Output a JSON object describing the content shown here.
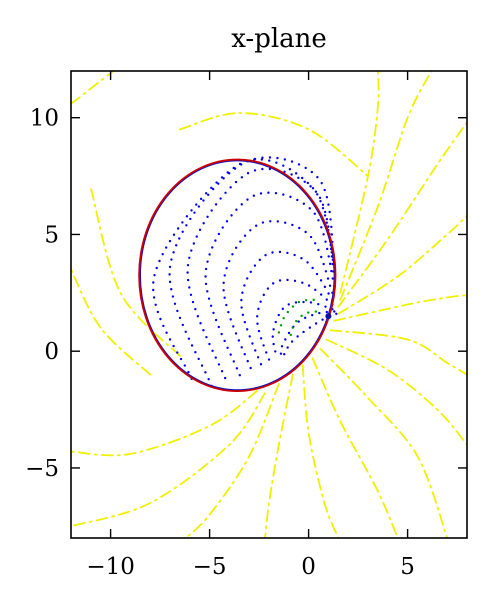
{
  "chart_data": {
    "type": "line",
    "title": "x-plane",
    "xlabel": "",
    "ylabel": "",
    "xlim": [
      -12,
      8
    ],
    "ylim": [
      -8,
      12
    ],
    "grid": false,
    "legend": "none",
    "x_ticks": [
      {
        "value": -10,
        "label": "−10"
      },
      {
        "value": -5,
        "label": "−5"
      },
      {
        "value": 0,
        "label": "0"
      },
      {
        "value": 5,
        "label": "5"
      }
    ],
    "y_ticks": [
      {
        "value": 10,
        "label": "10"
      },
      {
        "value": 5,
        "label": "5"
      },
      {
        "value": 0,
        "label": "0"
      },
      {
        "value": -5,
        "label": "−5"
      }
    ],
    "boundary_ellipse": {
      "center": [
        -3.6,
        3.25
      ],
      "semi_axis_x": 4.95,
      "semi_axis_y": 4.95,
      "color_outer": "#cc0000",
      "color_inner": "#1010c0"
    },
    "singular_point": [
      1.0,
      1.5
    ],
    "series": [
      {
        "style": "dotted",
        "color": "#0000ee",
        "description_role": "interior streamlines",
        "curves": [
          [
            [
              1.4,
              1.6
            ],
            [
              0.6,
              1.3
            ],
            [
              -0.6,
              0.6
            ],
            [
              -1.1,
              0.1
            ],
            [
              -1.3,
              -0.3
            ]
          ],
          [
            [
              1.3,
              1.7
            ],
            [
              0.4,
              1.6
            ],
            [
              -0.6,
              1.2
            ],
            [
              -1.3,
              0.3
            ],
            [
              -1.4,
              -0.2
            ]
          ],
          [
            [
              1.2,
              1.8
            ],
            [
              0.0,
              2.1
            ],
            [
              -1.2,
              1.9
            ],
            [
              -1.8,
              0.8
            ],
            [
              -1.6,
              -0.3
            ]
          ],
          [
            [
              1.2,
              2.0
            ],
            [
              -0.2,
              2.9
            ],
            [
              -1.8,
              2.9
            ],
            [
              -2.6,
              1.4
            ],
            [
              -1.9,
              -0.6
            ]
          ],
          [
            [
              1.2,
              2.2
            ],
            [
              -0.2,
              3.9
            ],
            [
              -2.2,
              4.1
            ],
            [
              -3.4,
              2.1
            ],
            [
              -2.3,
              -0.8
            ]
          ],
          [
            [
              1.2,
              2.5
            ],
            [
              0.0,
              5.0
            ],
            [
              -2.6,
              5.4
            ],
            [
              -4.3,
              2.8
            ],
            [
              -2.8,
              -1.0
            ]
          ],
          [
            [
              1.3,
              2.8
            ],
            [
              0.2,
              6.0
            ],
            [
              -2.9,
              6.6
            ],
            [
              -5.2,
              3.3
            ],
            [
              -3.4,
              -1.2
            ]
          ],
          [
            [
              1.3,
              3.1
            ],
            [
              0.4,
              6.8
            ],
            [
              -3.1,
              7.6
            ],
            [
              -6.1,
              3.6
            ],
            [
              -4.1,
              -1.4
            ]
          ],
          [
            [
              1.3,
              3.4
            ],
            [
              0.5,
              7.4
            ],
            [
              -3.4,
              8.0
            ],
            [
              -7.0,
              3.6
            ],
            [
              -4.9,
              -1.5
            ]
          ],
          [
            [
              1.3,
              3.6
            ],
            [
              0.2,
              7.0
            ],
            [
              -3.5,
              8.0
            ],
            [
              -7.8,
              3.2
            ],
            [
              -5.9,
              -1.2
            ]
          ]
        ]
      },
      {
        "style": "dotted",
        "color": "#00a000",
        "description_role": "secondary dotted curves near singular point",
        "curves": [
          [
            [
              -1.5,
              0.8
            ],
            [
              -1.2,
              1.5
            ],
            [
              -0.5,
              2.1
            ],
            [
              0.3,
              2.2
            ]
          ],
          [
            [
              -0.9,
              0.7
            ],
            [
              -0.7,
              1.2
            ],
            [
              -0.2,
              1.6
            ],
            [
              0.4,
              1.7
            ]
          ]
        ]
      },
      {
        "style": "dash-dot",
        "color": "#f0f000",
        "description_role": "exterior streamlines",
        "curves": [
          [
            [
              -2.2,
              -1.8
            ],
            [
              -4.0,
              -4.0
            ],
            [
              -8.0,
              -6.5
            ],
            [
              -12.0,
              -7.5
            ]
          ],
          [
            [
              -2.6,
              -1.7
            ],
            [
              -5.0,
              -3.2
            ],
            [
              -9.0,
              -4.4
            ],
            [
              -12.0,
              -4.3
            ]
          ],
          [
            [
              -1.5,
              -1.4
            ],
            [
              -3.0,
              -4.5
            ],
            [
              -5.0,
              -7.0
            ],
            [
              -6.2,
              -8.0
            ]
          ],
          [
            [
              -0.8,
              -1.0
            ],
            [
              -1.5,
              -4.0
            ],
            [
              -2.0,
              -6.5
            ],
            [
              -2.2,
              -8.0
            ]
          ],
          [
            [
              -0.3,
              -0.6
            ],
            [
              0.0,
              -3.5
            ],
            [
              0.8,
              -6.5
            ],
            [
              1.5,
              -8.0
            ]
          ],
          [
            [
              0.2,
              -0.3
            ],
            [
              1.6,
              -3.0
            ],
            [
              3.5,
              -6.0
            ],
            [
              4.5,
              -8.0
            ]
          ],
          [
            [
              0.6,
              0.1
            ],
            [
              3.0,
              -2.0
            ],
            [
              5.5,
              -4.5
            ],
            [
              7.0,
              -8.0
            ]
          ],
          [
            [
              0.9,
              0.5
            ],
            [
              4.0,
              -0.8
            ],
            [
              6.5,
              -2.5
            ],
            [
              8.0,
              -4.0
            ]
          ],
          [
            [
              1.1,
              0.9
            ],
            [
              5.0,
              0.5
            ],
            [
              7.0,
              -0.5
            ],
            [
              8.0,
              -1.0
            ]
          ],
          [
            [
              1.3,
              1.3
            ],
            [
              5.0,
              2.0
            ],
            [
              7.0,
              2.3
            ],
            [
              8.0,
              2.4
            ]
          ],
          [
            [
              1.5,
              1.6
            ],
            [
              4.5,
              3.2
            ],
            [
              7.0,
              5.0
            ],
            [
              8.0,
              5.8
            ]
          ],
          [
            [
              1.5,
              1.9
            ],
            [
              4.0,
              4.8
            ],
            [
              6.5,
              8.0
            ],
            [
              8.0,
              9.8
            ]
          ],
          [
            [
              1.6,
              2.2
            ],
            [
              3.5,
              6.2
            ],
            [
              5.0,
              10.0
            ],
            [
              6.2,
              12.0
            ]
          ],
          [
            [
              1.6,
              2.5
            ],
            [
              3.0,
              7.5
            ],
            [
              3.5,
              10.5
            ],
            [
              3.5,
              12.0
            ]
          ],
          [
            [
              -6.5,
              9.5
            ],
            [
              -3.5,
              10.2
            ],
            [
              0.0,
              9.5
            ],
            [
              3.0,
              7.5
            ]
          ],
          [
            [
              -12.0,
              10.6
            ],
            [
              -7.5,
              13.2
            ],
            [
              -2.5,
              13.7
            ],
            [
              2.5,
              12.9
            ]
          ],
          [
            [
              -8.0,
              -1.0
            ],
            [
              -10.5,
              1.0
            ],
            [
              -12.0,
              3.5
            ]
          ],
          [
            [
              -6.5,
              -0.2
            ],
            [
              -9.5,
              2.5
            ],
            [
              -11.0,
              7.0
            ]
          ]
        ]
      }
    ]
  }
}
